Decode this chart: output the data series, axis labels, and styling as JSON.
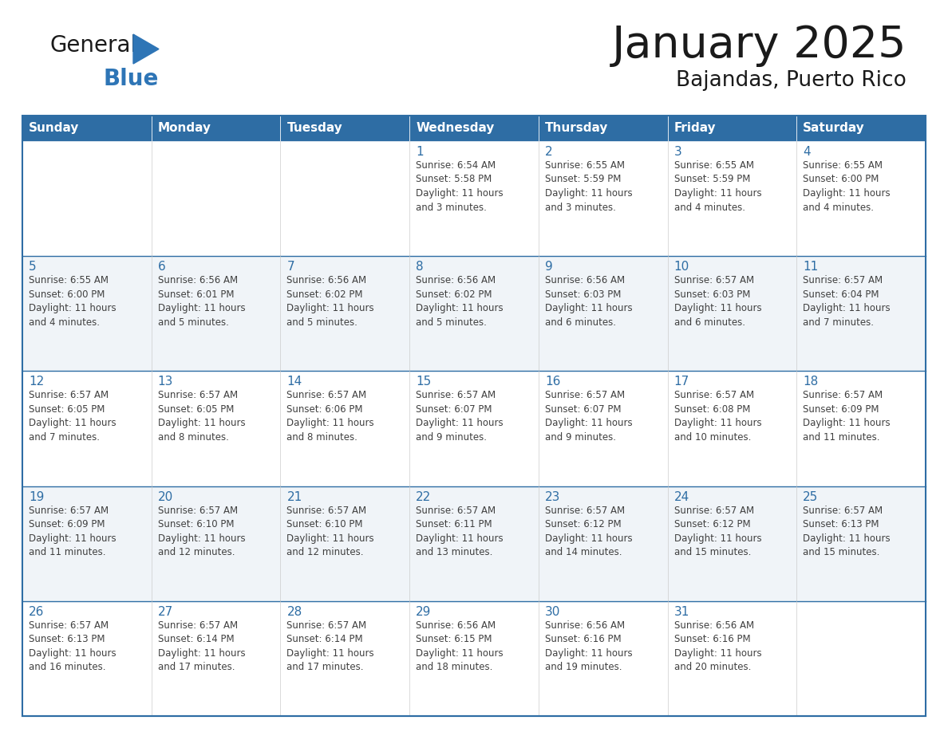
{
  "title": "January 2025",
  "subtitle": "Bajandas, Puerto Rico",
  "days_of_week": [
    "Sunday",
    "Monday",
    "Tuesday",
    "Wednesday",
    "Thursday",
    "Friday",
    "Saturday"
  ],
  "header_bg": "#2E6DA4",
  "header_text": "#FFFFFF",
  "cell_bg_light": "#FFFFFF",
  "cell_bg_alt": "#F0F4F8",
  "border_color": "#2E6DA4",
  "day_num_color": "#2E6DA4",
  "cell_text_color": "#404040",
  "title_color": "#1a1a1a",
  "subtitle_color": "#1a1a1a",
  "black_color": "#1a1a1a",
  "blue_color": "#2E75B6",
  "calendar_data": [
    [
      {
        "day": null,
        "info": ""
      },
      {
        "day": null,
        "info": ""
      },
      {
        "day": null,
        "info": ""
      },
      {
        "day": 1,
        "info": "Sunrise: 6:54 AM\nSunset: 5:58 PM\nDaylight: 11 hours\nand 3 minutes."
      },
      {
        "day": 2,
        "info": "Sunrise: 6:55 AM\nSunset: 5:59 PM\nDaylight: 11 hours\nand 3 minutes."
      },
      {
        "day": 3,
        "info": "Sunrise: 6:55 AM\nSunset: 5:59 PM\nDaylight: 11 hours\nand 4 minutes."
      },
      {
        "day": 4,
        "info": "Sunrise: 6:55 AM\nSunset: 6:00 PM\nDaylight: 11 hours\nand 4 minutes."
      }
    ],
    [
      {
        "day": 5,
        "info": "Sunrise: 6:55 AM\nSunset: 6:00 PM\nDaylight: 11 hours\nand 4 minutes."
      },
      {
        "day": 6,
        "info": "Sunrise: 6:56 AM\nSunset: 6:01 PM\nDaylight: 11 hours\nand 5 minutes."
      },
      {
        "day": 7,
        "info": "Sunrise: 6:56 AM\nSunset: 6:02 PM\nDaylight: 11 hours\nand 5 minutes."
      },
      {
        "day": 8,
        "info": "Sunrise: 6:56 AM\nSunset: 6:02 PM\nDaylight: 11 hours\nand 5 minutes."
      },
      {
        "day": 9,
        "info": "Sunrise: 6:56 AM\nSunset: 6:03 PM\nDaylight: 11 hours\nand 6 minutes."
      },
      {
        "day": 10,
        "info": "Sunrise: 6:57 AM\nSunset: 6:03 PM\nDaylight: 11 hours\nand 6 minutes."
      },
      {
        "day": 11,
        "info": "Sunrise: 6:57 AM\nSunset: 6:04 PM\nDaylight: 11 hours\nand 7 minutes."
      }
    ],
    [
      {
        "day": 12,
        "info": "Sunrise: 6:57 AM\nSunset: 6:05 PM\nDaylight: 11 hours\nand 7 minutes."
      },
      {
        "day": 13,
        "info": "Sunrise: 6:57 AM\nSunset: 6:05 PM\nDaylight: 11 hours\nand 8 minutes."
      },
      {
        "day": 14,
        "info": "Sunrise: 6:57 AM\nSunset: 6:06 PM\nDaylight: 11 hours\nand 8 minutes."
      },
      {
        "day": 15,
        "info": "Sunrise: 6:57 AM\nSunset: 6:07 PM\nDaylight: 11 hours\nand 9 minutes."
      },
      {
        "day": 16,
        "info": "Sunrise: 6:57 AM\nSunset: 6:07 PM\nDaylight: 11 hours\nand 9 minutes."
      },
      {
        "day": 17,
        "info": "Sunrise: 6:57 AM\nSunset: 6:08 PM\nDaylight: 11 hours\nand 10 minutes."
      },
      {
        "day": 18,
        "info": "Sunrise: 6:57 AM\nSunset: 6:09 PM\nDaylight: 11 hours\nand 11 minutes."
      }
    ],
    [
      {
        "day": 19,
        "info": "Sunrise: 6:57 AM\nSunset: 6:09 PM\nDaylight: 11 hours\nand 11 minutes."
      },
      {
        "day": 20,
        "info": "Sunrise: 6:57 AM\nSunset: 6:10 PM\nDaylight: 11 hours\nand 12 minutes."
      },
      {
        "day": 21,
        "info": "Sunrise: 6:57 AM\nSunset: 6:10 PM\nDaylight: 11 hours\nand 12 minutes."
      },
      {
        "day": 22,
        "info": "Sunrise: 6:57 AM\nSunset: 6:11 PM\nDaylight: 11 hours\nand 13 minutes."
      },
      {
        "day": 23,
        "info": "Sunrise: 6:57 AM\nSunset: 6:12 PM\nDaylight: 11 hours\nand 14 minutes."
      },
      {
        "day": 24,
        "info": "Sunrise: 6:57 AM\nSunset: 6:12 PM\nDaylight: 11 hours\nand 15 minutes."
      },
      {
        "day": 25,
        "info": "Sunrise: 6:57 AM\nSunset: 6:13 PM\nDaylight: 11 hours\nand 15 minutes."
      }
    ],
    [
      {
        "day": 26,
        "info": "Sunrise: 6:57 AM\nSunset: 6:13 PM\nDaylight: 11 hours\nand 16 minutes."
      },
      {
        "day": 27,
        "info": "Sunrise: 6:57 AM\nSunset: 6:14 PM\nDaylight: 11 hours\nand 17 minutes."
      },
      {
        "day": 28,
        "info": "Sunrise: 6:57 AM\nSunset: 6:14 PM\nDaylight: 11 hours\nand 17 minutes."
      },
      {
        "day": 29,
        "info": "Sunrise: 6:56 AM\nSunset: 6:15 PM\nDaylight: 11 hours\nand 18 minutes."
      },
      {
        "day": 30,
        "info": "Sunrise: 6:56 AM\nSunset: 6:16 PM\nDaylight: 11 hours\nand 19 minutes."
      },
      {
        "day": 31,
        "info": "Sunrise: 6:56 AM\nSunset: 6:16 PM\nDaylight: 11 hours\nand 20 minutes."
      },
      {
        "day": null,
        "info": ""
      }
    ]
  ]
}
